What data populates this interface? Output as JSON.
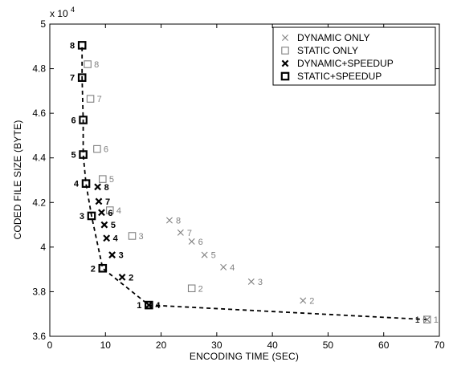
{
  "chart_data": {
    "type": "scatter",
    "title": "",
    "xlabel": "ENCODING TIME (SEC)",
    "ylabel": "CODED FILE SIZE (BYTE)",
    "y_exponent_label": "x 10^4",
    "xlim": [
      0,
      70
    ],
    "ylim": [
      3.6,
      5.0
    ],
    "xticks": [
      0,
      10,
      20,
      30,
      40,
      50,
      60,
      70
    ],
    "yticks": [
      3.6,
      3.8,
      4.0,
      4.2,
      4.4,
      4.6,
      4.8,
      5.0
    ],
    "xtick_labels": [
      "0",
      "10",
      "20",
      "30",
      "40",
      "50",
      "60",
      "70"
    ],
    "ytick_labels": [
      "3.6",
      "3.8",
      "4",
      "4.2",
      "4.4",
      "4.6",
      "4.8",
      "5"
    ],
    "grid": false,
    "legend_position": "top-right",
    "series": [
      {
        "name": "DYNAMIC ONLY",
        "marker": "x",
        "color": "#808080",
        "bold": false,
        "points": [
          {
            "x": 67.8,
            "y": 3.675,
            "label": "1"
          },
          {
            "x": 45.5,
            "y": 3.76,
            "label": "2"
          },
          {
            "x": 36.2,
            "y": 3.845,
            "label": "3"
          },
          {
            "x": 31.2,
            "y": 3.91,
            "label": "4"
          },
          {
            "x": 27.8,
            "y": 3.965,
            "label": "5"
          },
          {
            "x": 25.5,
            "y": 4.025,
            "label": "6"
          },
          {
            "x": 23.5,
            "y": 4.065,
            "label": "7"
          },
          {
            "x": 21.5,
            "y": 4.12,
            "label": "8"
          }
        ]
      },
      {
        "name": "STATIC ONLY",
        "marker": "square",
        "color": "#808080",
        "bold": false,
        "points": [
          {
            "x": 67.8,
            "y": 3.675,
            "label": ""
          },
          {
            "x": 25.5,
            "y": 3.815,
            "label": "2"
          },
          {
            "x": 14.8,
            "y": 4.05,
            "label": "3"
          },
          {
            "x": 10.8,
            "y": 4.165,
            "label": "4"
          },
          {
            "x": 9.5,
            "y": 4.305,
            "label": "5"
          },
          {
            "x": 8.5,
            "y": 4.44,
            "label": "6"
          },
          {
            "x": 7.3,
            "y": 4.665,
            "label": "7"
          },
          {
            "x": 6.8,
            "y": 4.82,
            "label": "8"
          }
        ]
      },
      {
        "name": "DYNAMIC+SPEEDUP",
        "marker": "x",
        "color": "#000000",
        "bold": true,
        "points": [
          {
            "x": 17.8,
            "y": 3.74,
            "label": "4"
          },
          {
            "x": 13.0,
            "y": 3.865,
            "label": "2"
          },
          {
            "x": 11.2,
            "y": 3.965,
            "label": "3"
          },
          {
            "x": 10.2,
            "y": 4.04,
            "label": "4"
          },
          {
            "x": 9.8,
            "y": 4.1,
            "label": "5"
          },
          {
            "x": 9.3,
            "y": 4.155,
            "label": "6"
          },
          {
            "x": 8.8,
            "y": 4.205,
            "label": "7"
          },
          {
            "x": 8.6,
            "y": 4.27,
            "label": "8"
          }
        ]
      },
      {
        "name": "STATIC+SPEEDUP",
        "marker": "square",
        "color": "#000000",
        "bold": true,
        "points": [
          {
            "x": 17.8,
            "y": 3.74,
            "label": "1"
          },
          {
            "x": 9.5,
            "y": 3.905,
            "label": "2"
          },
          {
            "x": 7.5,
            "y": 4.14,
            "label": "3"
          },
          {
            "x": 6.5,
            "y": 4.285,
            "label": "4"
          },
          {
            "x": 6.0,
            "y": 4.415,
            "label": "5"
          },
          {
            "x": 6.0,
            "y": 4.57,
            "label": "6"
          },
          {
            "x": 5.8,
            "y": 4.76,
            "label": "7"
          },
          {
            "x": 5.8,
            "y": 4.905,
            "label": "8"
          }
        ]
      }
    ],
    "pareto_frontier": {
      "style": "dashed",
      "points": [
        {
          "x": 67.8,
          "y": 3.675
        },
        {
          "x": 17.8,
          "y": 3.74
        },
        {
          "x": 9.5,
          "y": 3.905
        },
        {
          "x": 7.5,
          "y": 4.14
        },
        {
          "x": 6.5,
          "y": 4.285
        },
        {
          "x": 6.0,
          "y": 4.415
        },
        {
          "x": 6.0,
          "y": 4.57
        },
        {
          "x": 5.8,
          "y": 4.76
        },
        {
          "x": 5.8,
          "y": 4.905
        }
      ]
    },
    "extra_labels": [
      {
        "text": "1",
        "x": 67.8,
        "y": 3.675
      }
    ]
  }
}
